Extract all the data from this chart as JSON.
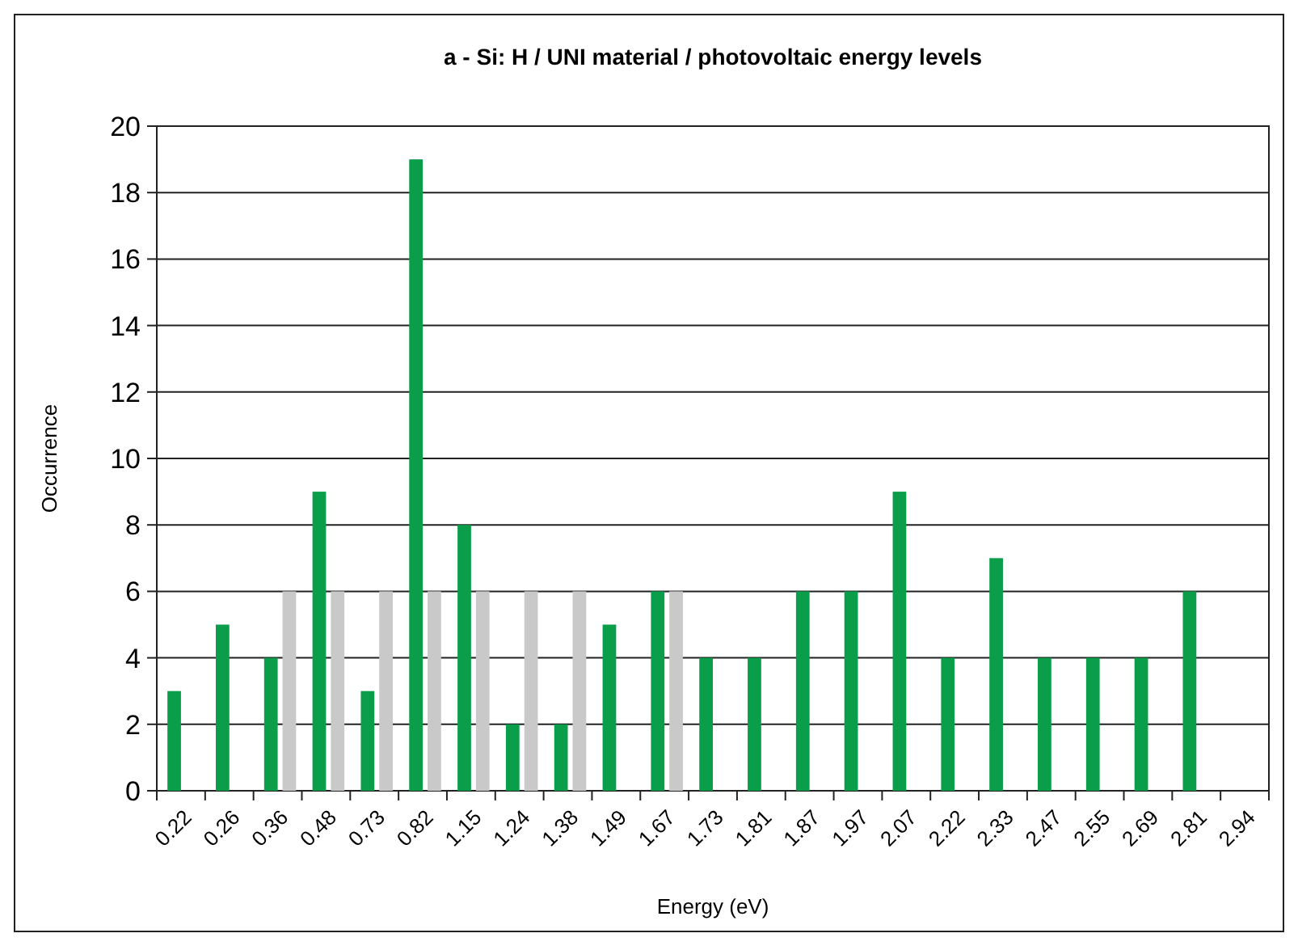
{
  "chart_data": {
    "type": "bar",
    "title": "a - Si: H / UNI material / photovoltaic energy levels",
    "xlabel": "Energy (eV)",
    "ylabel": "Occurrence",
    "categories": [
      "0.22",
      "0.26",
      "0.36",
      "0.48",
      "0.73",
      "0.82",
      "1.15",
      "1.24",
      "1.38",
      "1.49",
      "1.67",
      "1.73",
      "1.81",
      "1.87",
      "1.97",
      "2.07",
      "2.22",
      "2.33",
      "2.47",
      "2.55",
      "2.69",
      "2.81",
      "2.94"
    ],
    "series": [
      {
        "color": "#0a9e4a",
        "values": [
          3,
          5,
          4,
          9,
          3,
          19,
          8,
          2,
          2,
          5,
          6,
          4,
          4,
          6,
          6,
          9,
          4,
          7,
          4,
          4,
          4,
          6,
          null
        ]
      },
      {
        "color": "#c9c9c9",
        "values": [
          null,
          null,
          6,
          6,
          6,
          6,
          6,
          6,
          6,
          null,
          6,
          null,
          null,
          null,
          null,
          null,
          null,
          null,
          null,
          null,
          null,
          null,
          null
        ]
      }
    ],
    "ylim": [
      0,
      20
    ],
    "yticks": [
      0,
      2,
      4,
      6,
      8,
      10,
      12,
      14,
      16,
      18,
      20
    ],
    "grid": "y"
  }
}
